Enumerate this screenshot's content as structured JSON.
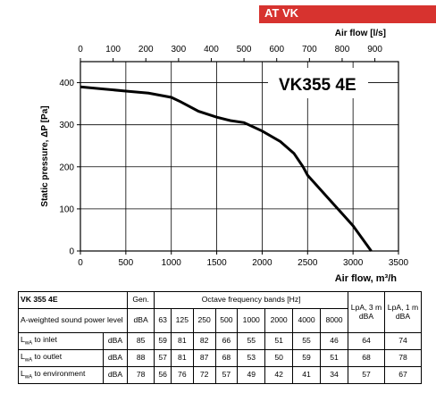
{
  "badge": "AT VK",
  "chart_data": {
    "type": "line",
    "title": "VK355 4E",
    "xlabel": "Air flow, m³/h",
    "ylabel": "Static pressure, ΔP [Pa]",
    "x2label": "Air flow [l/s]",
    "xlim": [
      0,
      3500
    ],
    "ylim": [
      0,
      450
    ],
    "x2lim": [
      0,
      972.2
    ],
    "xticks": [
      0,
      500,
      1000,
      1500,
      2000,
      2500,
      3000,
      3500
    ],
    "yticks": [
      0,
      100,
      200,
      300,
      400
    ],
    "x2ticks": [
      0,
      100,
      200,
      300,
      400,
      500,
      600,
      700,
      800,
      900
    ],
    "grid": true,
    "series": [
      {
        "x": [
          0,
          250,
          500,
          750,
          1000,
          1100,
          1300,
          1500,
          1650,
          1800,
          2000,
          2200,
          2350,
          2450,
          2500,
          2750,
          3000,
          3200
        ],
        "values": [
          390,
          385,
          380,
          375,
          365,
          355,
          332,
          318,
          310,
          305,
          285,
          260,
          232,
          200,
          180,
          120,
          60,
          0
        ]
      }
    ]
  },
  "table": {
    "model": "VK 355 4E",
    "gen": "Gen.",
    "octave_header": "Octave frequency bands [Hz]",
    "lpa3": "LpA, 3 m dBA",
    "lpa1": "LpA, 1 m dBA",
    "aw_label": "A-weighted sound power level",
    "aw_unit": "dBA",
    "bands": [
      "63",
      "125",
      "250",
      "500",
      "1000",
      "2000",
      "4000",
      "8000"
    ],
    "rows": [
      {
        "label_pre": "L",
        "label_sub": "wA",
        "label_post": " to inlet",
        "unit": "dBA",
        "gen": "85",
        "values": [
          "59",
          "81",
          "82",
          "66",
          "55",
          "51",
          "55",
          "46"
        ],
        "lpa3": "64",
        "lpa1": "74"
      },
      {
        "label_pre": "L",
        "label_sub": "wA",
        "label_post": " to outlet",
        "unit": "dBA",
        "gen": "88",
        "values": [
          "57",
          "81",
          "87",
          "68",
          "53",
          "50",
          "59",
          "51"
        ],
        "lpa3": "68",
        "lpa1": "78"
      },
      {
        "label_pre": "L",
        "label_sub": "wA",
        "label_post": " to environment",
        "unit": "dBA",
        "gen": "78",
        "values": [
          "56",
          "76",
          "72",
          "57",
          "49",
          "42",
          "41",
          "34"
        ],
        "lpa3": "57",
        "lpa1": "67"
      }
    ]
  }
}
